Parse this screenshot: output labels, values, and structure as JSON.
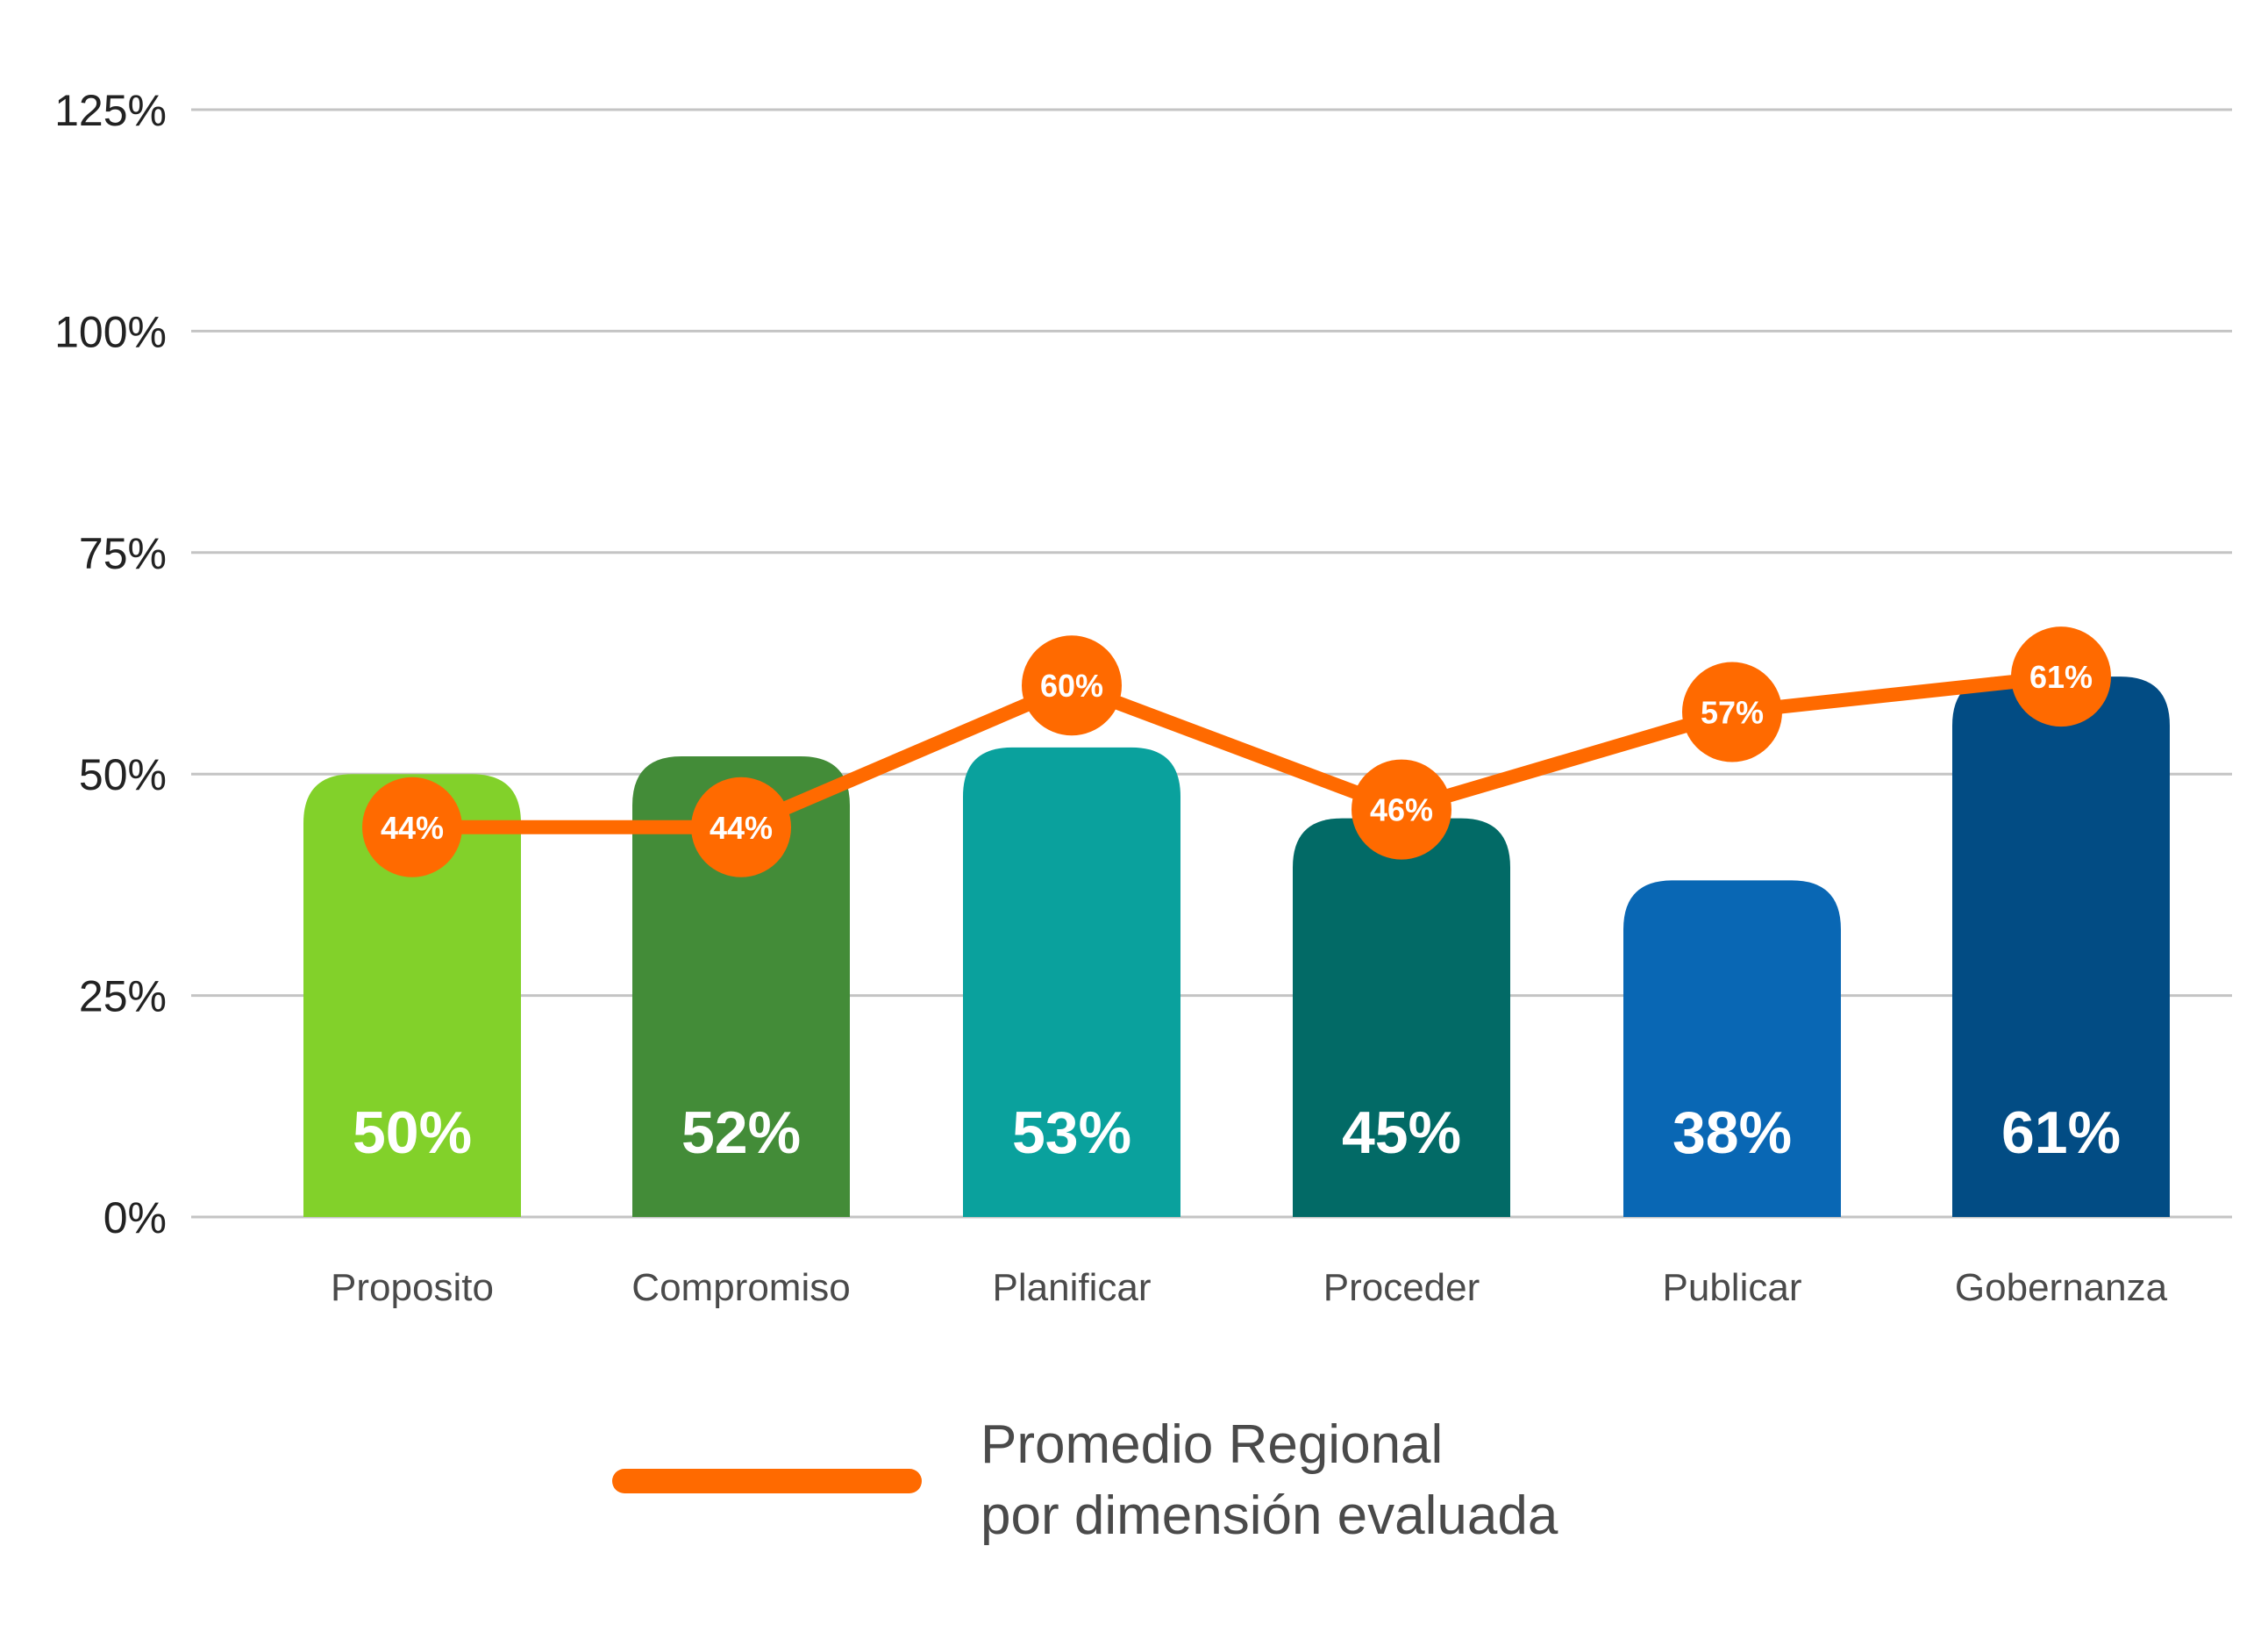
{
  "chart_data": {
    "type": "bar",
    "categories": [
      "Proposito",
      "Compromiso",
      "Planificar",
      "Proceder",
      "Publicar",
      "Gobernanza"
    ],
    "ylim": [
      0,
      125
    ],
    "yticks": [
      0,
      25,
      50,
      75,
      100,
      125
    ],
    "ytick_labels": [
      "0%",
      "25%",
      "50%",
      "75%",
      "100%",
      "125%"
    ],
    "grid": true,
    "bars": {
      "values": [
        50,
        52,
        53,
        45,
        38,
        61
      ],
      "labels": [
        "50%",
        "52%",
        "53%",
        "45%",
        "38%",
        "61%"
      ],
      "colors": [
        "#82d12a",
        "#438c38",
        "#0aa19d",
        "#026a66",
        "#0967b4",
        "#024c84"
      ]
    },
    "line": {
      "name": "Promedio Regional por dimensión evaluada",
      "values": [
        44,
        44,
        60,
        46,
        57,
        61
      ],
      "labels": [
        "44%",
        "44%",
        "60%",
        "46%",
        "57%",
        "61%"
      ],
      "color": "#ff6a00"
    },
    "legend": {
      "position": "bottom-center",
      "line1": "Promedio Regional",
      "line2": "por dimensión evaluada"
    }
  }
}
